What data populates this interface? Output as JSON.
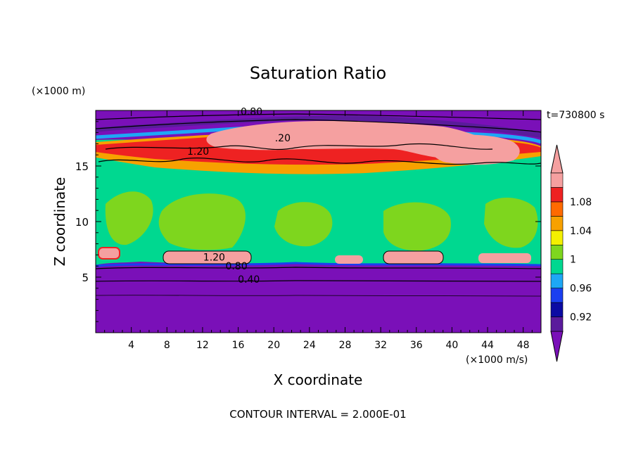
{
  "chart_data": {
    "type": "heatmap",
    "title": "Saturation Ratio",
    "xlabel": "X coordinate",
    "ylabel": "Z coordinate",
    "x_unit": "(×1000 m/s)",
    "y_unit": "(×1000 m)",
    "time_label": "t=730800 s",
    "footer": "CONTOUR INTERVAL = 2.000E-01",
    "xlim": [
      0,
      50
    ],
    "ylim": [
      0,
      20
    ],
    "x_ticks": [
      4,
      8,
      12,
      16,
      20,
      24,
      28,
      32,
      36,
      40,
      44,
      48
    ],
    "y_ticks": [
      5,
      10,
      15
    ],
    "contour_labels": [
      {
        "text": "0.80",
        "x": 17.5,
        "z": 19.6
      },
      {
        "text": ".20",
        "x": 21.0,
        "z": 17.2
      },
      {
        "text": "1.20",
        "x": 11.5,
        "z": 16.0
      },
      {
        "text": "1.20",
        "x": 13.3,
        "z": 6.5
      },
      {
        "text": "0.80",
        "x": 15.8,
        "z": 5.7
      },
      {
        "text": "0.40",
        "x": 17.2,
        "z": 4.5
      }
    ],
    "colorbar": {
      "levels": [
        0.9,
        0.92,
        0.94,
        0.96,
        0.98,
        1.0,
        1.02,
        1.04,
        1.06,
        1.08,
        1.1
      ],
      "tick_labels": [
        "0.92",
        "0.96",
        "1",
        "1.04",
        "1.08"
      ],
      "colors": [
        "#5a1b9c",
        "#0b0ba3",
        "#1a3ff0",
        "#1ea7f5",
        "#00d890",
        "#7ed61e",
        "#f4f000",
        "#f7a100",
        "#ff6a00",
        "#ee2222",
        "#f5a0a0"
      ],
      "under_color": "#7a10b8"
    },
    "regions": {
      "low_value_color": "#7a10b8",
      "mid_value_color": "#00d890",
      "high_value_color": "#f5a0a0",
      "green_patch_color": "#7ed61e"
    }
  }
}
